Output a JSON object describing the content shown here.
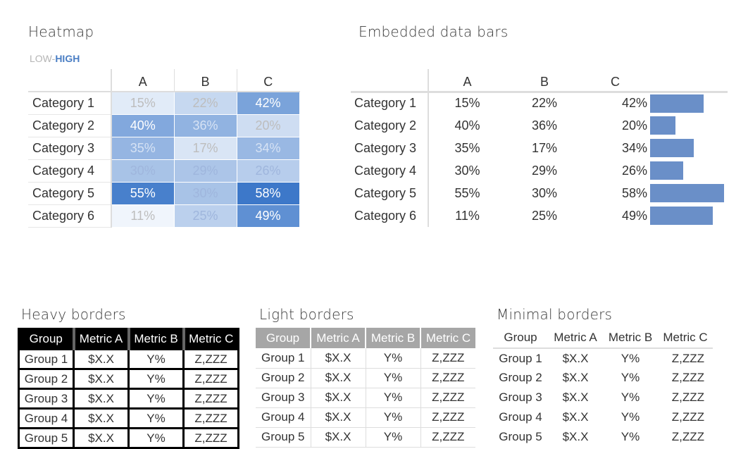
{
  "heatmap": {
    "title": "Heatmap",
    "legend_low": "LOW-",
    "legend_high": "HIGH",
    "columns": [
      "A",
      "B",
      "C"
    ],
    "rows": [
      {
        "label": "Category 1",
        "values": [
          "15%",
          "22%",
          "42%"
        ]
      },
      {
        "label": "Category 2",
        "values": [
          "40%",
          "36%",
          "20%"
        ]
      },
      {
        "label": "Category 3",
        "values": [
          "35%",
          "17%",
          "34%"
        ]
      },
      {
        "label": "Category 4",
        "values": [
          "30%",
          "29%",
          "26%"
        ]
      },
      {
        "label": "Category 5",
        "values": [
          "55%",
          "30%",
          "58%"
        ]
      },
      {
        "label": "Category 6",
        "values": [
          "11%",
          "25%",
          "49%"
        ]
      }
    ],
    "colors": {
      "low": "#f4f8fd",
      "high": "#3d78c9",
      "legend_high": "#4a7ec4"
    }
  },
  "databars": {
    "title": "Embedded data bars",
    "columns": [
      "A",
      "B",
      "C"
    ],
    "rows": [
      {
        "label": "Category 1",
        "values": [
          "15%",
          "22%",
          "42%"
        ],
        "bar": 42
      },
      {
        "label": "Category 2",
        "values": [
          "40%",
          "36%",
          "20%"
        ],
        "bar": 20
      },
      {
        "label": "Category 3",
        "values": [
          "35%",
          "17%",
          "34%"
        ],
        "bar": 34
      },
      {
        "label": "Category 4",
        "values": [
          "30%",
          "29%",
          "26%"
        ],
        "bar": 26
      },
      {
        "label": "Category 5",
        "values": [
          "55%",
          "30%",
          "58%"
        ],
        "bar": 58
      },
      {
        "label": "Category 6",
        "values": [
          "11%",
          "25%",
          "49%"
        ],
        "bar": 49
      }
    ],
    "bar_color": "#6a8fc8"
  },
  "heavy": {
    "title": "Heavy borders",
    "headers": [
      "Group",
      "Metric A",
      "Metric B",
      "Metric C"
    ],
    "rows": [
      [
        "Group 1",
        "$X.X",
        "Y%",
        "Z,ZZZ"
      ],
      [
        "Group 2",
        "$X.X",
        "Y%",
        "Z,ZZZ"
      ],
      [
        "Group 3",
        "$X.X",
        "Y%",
        "Z,ZZZ"
      ],
      [
        "Group 4",
        "$X.X",
        "Y%",
        "Z,ZZZ"
      ],
      [
        "Group 5",
        "$X.X",
        "Y%",
        "Z,ZZZ"
      ]
    ]
  },
  "light": {
    "title": "Light borders",
    "headers": [
      "Group",
      "Metric A",
      "Metric B",
      "Metric C"
    ],
    "rows": [
      [
        "Group 1",
        "$X.X",
        "Y%",
        "Z,ZZZ"
      ],
      [
        "Group 2",
        "$X.X",
        "Y%",
        "Z,ZZZ"
      ],
      [
        "Group 3",
        "$X.X",
        "Y%",
        "Z,ZZZ"
      ],
      [
        "Group 4",
        "$X.X",
        "Y%",
        "Z,ZZZ"
      ],
      [
        "Group 5",
        "$X.X",
        "Y%",
        "Z,ZZZ"
      ]
    ]
  },
  "minimal": {
    "title": "Minimal borders",
    "headers": [
      "Group",
      "Metric A",
      "Metric B",
      "Metric C"
    ],
    "rows": [
      [
        "Group 1",
        "$X.X",
        "Y%",
        "Z,ZZZ"
      ],
      [
        "Group 2",
        "$X.X",
        "Y%",
        "Z,ZZZ"
      ],
      [
        "Group 3",
        "$X.X",
        "Y%",
        "Z,ZZZ"
      ],
      [
        "Group 4",
        "$X.X",
        "Y%",
        "Z,ZZZ"
      ],
      [
        "Group 5",
        "$X.X",
        "Y%",
        "Z,ZZZ"
      ]
    ]
  }
}
